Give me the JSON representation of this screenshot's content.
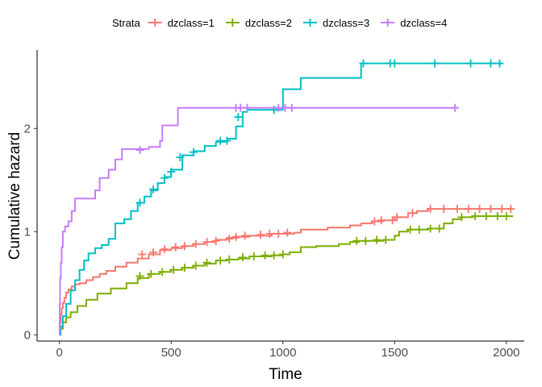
{
  "chart_data": {
    "type": "line",
    "step": true,
    "xlabel": "Time",
    "ylabel": "Cumulative hazard",
    "xlim": [
      -100,
      2080
    ],
    "ylim": [
      -0.06,
      2.76
    ],
    "xticks": [
      0,
      500,
      1000,
      1500,
      2000
    ],
    "yticks": [
      0,
      1,
      2
    ],
    "grid": false,
    "legend": {
      "position": "top",
      "title": "Strata"
    },
    "series": [
      {
        "name": "dzclass=1",
        "color": "#F8766D",
        "points": [
          [
            0,
            0
          ],
          [
            3,
            0.12
          ],
          [
            6,
            0.2
          ],
          [
            10,
            0.26
          ],
          [
            15,
            0.31
          ],
          [
            22,
            0.36
          ],
          [
            30,
            0.41
          ],
          [
            40,
            0.44
          ],
          [
            55,
            0.47
          ],
          [
            70,
            0.49
          ],
          [
            90,
            0.5
          ],
          [
            120,
            0.53
          ],
          [
            150,
            0.56
          ],
          [
            180,
            0.59
          ],
          [
            210,
            0.62
          ],
          [
            250,
            0.66
          ],
          [
            300,
            0.7
          ],
          [
            350,
            0.74
          ],
          [
            400,
            0.78
          ],
          [
            450,
            0.82
          ],
          [
            500,
            0.84
          ],
          [
            550,
            0.86
          ],
          [
            600,
            0.88
          ],
          [
            650,
            0.9
          ],
          [
            700,
            0.92
          ],
          [
            750,
            0.94
          ],
          [
            800,
            0.95
          ],
          [
            850,
            0.96
          ],
          [
            900,
            0.96
          ],
          [
            950,
            0.98
          ],
          [
            1000,
            0.98
          ],
          [
            1050,
            0.99
          ],
          [
            1080,
            1.02
          ],
          [
            1150,
            1.02
          ],
          [
            1200,
            1.04
          ],
          [
            1300,
            1.06
          ],
          [
            1350,
            1.08
          ],
          [
            1400,
            1.1
          ],
          [
            1450,
            1.11
          ],
          [
            1500,
            1.14
          ],
          [
            1560,
            1.18
          ],
          [
            1600,
            1.2
          ],
          [
            1650,
            1.22
          ],
          [
            1700,
            1.22
          ],
          [
            2030,
            1.22
          ]
        ],
        "censored": [
          [
            370,
            0.78
          ],
          [
            420,
            0.8
          ],
          [
            470,
            0.83
          ],
          [
            520,
            0.85
          ],
          [
            560,
            0.86
          ],
          [
            610,
            0.88
          ],
          [
            660,
            0.9
          ],
          [
            700,
            0.91
          ],
          [
            760,
            0.93
          ],
          [
            790,
            0.95
          ],
          [
            830,
            0.96
          ],
          [
            900,
            0.97
          ],
          [
            940,
            0.98
          ],
          [
            980,
            0.98
          ],
          [
            1020,
            0.99
          ],
          [
            1410,
            1.1
          ],
          [
            1440,
            1.11
          ],
          [
            1490,
            1.11
          ],
          [
            1510,
            1.14
          ],
          [
            1580,
            1.18
          ],
          [
            1660,
            1.22
          ],
          [
            1720,
            1.22
          ],
          [
            1780,
            1.22
          ],
          [
            1830,
            1.22
          ],
          [
            1880,
            1.22
          ],
          [
            1930,
            1.22
          ],
          [
            1980,
            1.22
          ],
          [
            2020,
            1.22
          ]
        ]
      },
      {
        "name": "dzclass=2",
        "color": "#7CAE00",
        "points": [
          [
            0,
            0
          ],
          [
            5,
            0.06
          ],
          [
            15,
            0.12
          ],
          [
            30,
            0.17
          ],
          [
            50,
            0.22
          ],
          [
            80,
            0.28
          ],
          [
            120,
            0.34
          ],
          [
            170,
            0.4
          ],
          [
            230,
            0.45
          ],
          [
            300,
            0.5
          ],
          [
            350,
            0.55
          ],
          [
            400,
            0.59
          ],
          [
            450,
            0.61
          ],
          [
            500,
            0.63
          ],
          [
            550,
            0.65
          ],
          [
            600,
            0.67
          ],
          [
            650,
            0.69
          ],
          [
            700,
            0.72
          ],
          [
            750,
            0.73
          ],
          [
            800,
            0.74
          ],
          [
            850,
            0.76
          ],
          [
            900,
            0.76
          ],
          [
            950,
            0.77
          ],
          [
            1000,
            0.78
          ],
          [
            1030,
            0.8
          ],
          [
            1080,
            0.85
          ],
          [
            1150,
            0.86
          ],
          [
            1250,
            0.88
          ],
          [
            1300,
            0.9
          ],
          [
            1340,
            0.91
          ],
          [
            1450,
            0.92
          ],
          [
            1500,
            0.96
          ],
          [
            1520,
            1.0
          ],
          [
            1560,
            1.02
          ],
          [
            1600,
            1.02
          ],
          [
            1650,
            1.03
          ],
          [
            1700,
            1.03
          ],
          [
            1720,
            1.08
          ],
          [
            1760,
            1.12
          ],
          [
            1800,
            1.14
          ],
          [
            1850,
            1.15
          ],
          [
            2030,
            1.15
          ]
        ],
        "censored": [
          [
            360,
            0.57
          ],
          [
            410,
            0.59
          ],
          [
            460,
            0.61
          ],
          [
            510,
            0.63
          ],
          [
            560,
            0.65
          ],
          [
            610,
            0.67
          ],
          [
            660,
            0.7
          ],
          [
            720,
            0.72
          ],
          [
            760,
            0.73
          ],
          [
            820,
            0.75
          ],
          [
            870,
            0.76
          ],
          [
            920,
            0.77
          ],
          [
            960,
            0.77
          ],
          [
            1000,
            0.78
          ],
          [
            1330,
            0.91
          ],
          [
            1370,
            0.91
          ],
          [
            1420,
            0.92
          ],
          [
            1460,
            0.92
          ],
          [
            1570,
            1.02
          ],
          [
            1610,
            1.02
          ],
          [
            1660,
            1.03
          ],
          [
            1700,
            1.03
          ],
          [
            1800,
            1.14
          ],
          [
            1860,
            1.15
          ],
          [
            1910,
            1.15
          ],
          [
            1960,
            1.15
          ],
          [
            2000,
            1.15
          ]
        ]
      },
      {
        "name": "dzclass=3",
        "color": "#00BFC4",
        "points": [
          [
            0,
            0
          ],
          [
            5,
            0.08
          ],
          [
            15,
            0.18
          ],
          [
            30,
            0.3
          ],
          [
            50,
            0.43
          ],
          [
            70,
            0.53
          ],
          [
            90,
            0.63
          ],
          [
            110,
            0.72
          ],
          [
            130,
            0.79
          ],
          [
            160,
            0.84
          ],
          [
            190,
            0.87
          ],
          [
            220,
            0.93
          ],
          [
            250,
            1.08
          ],
          [
            290,
            1.12
          ],
          [
            320,
            1.2
          ],
          [
            350,
            1.28
          ],
          [
            380,
            1.34
          ],
          [
            410,
            1.4
          ],
          [
            440,
            1.47
          ],
          [
            470,
            1.53
          ],
          [
            500,
            1.6
          ],
          [
            550,
            1.74
          ],
          [
            600,
            1.78
          ],
          [
            650,
            1.83
          ],
          [
            700,
            1.87
          ],
          [
            750,
            1.9
          ],
          [
            790,
            2.02
          ],
          [
            820,
            2.16
          ],
          [
            840,
            2.18
          ],
          [
            980,
            2.18
          ],
          [
            1000,
            2.38
          ],
          [
            1080,
            2.38
          ],
          [
            1080,
            2.49
          ],
          [
            1340,
            2.49
          ],
          [
            1350,
            2.63
          ],
          [
            1980,
            2.63
          ]
        ],
        "censored": [
          [
            360,
            1.28
          ],
          [
            420,
            1.41
          ],
          [
            470,
            1.52
          ],
          [
            500,
            1.58
          ],
          [
            540,
            1.72
          ],
          [
            600,
            1.77
          ],
          [
            720,
            1.88
          ],
          [
            750,
            1.88
          ],
          [
            800,
            2.11
          ],
          [
            960,
            2.18
          ],
          [
            1360,
            2.63
          ],
          [
            1480,
            2.63
          ],
          [
            1500,
            2.63
          ],
          [
            1680,
            2.63
          ],
          [
            1840,
            2.63
          ],
          [
            1930,
            2.63
          ],
          [
            1970,
            2.63
          ]
        ]
      },
      {
        "name": "dzclass=4",
        "color": "#C77CFF",
        "points": [
          [
            0,
            0
          ],
          [
            1,
            0.3
          ],
          [
            3,
            0.55
          ],
          [
            6,
            0.7
          ],
          [
            10,
            0.85
          ],
          [
            15,
            1.0
          ],
          [
            25,
            1.05
          ],
          [
            40,
            1.1
          ],
          [
            55,
            1.2
          ],
          [
            70,
            1.32
          ],
          [
            100,
            1.32
          ],
          [
            140,
            1.32
          ],
          [
            160,
            1.4
          ],
          [
            180,
            1.52
          ],
          [
            220,
            1.6
          ],
          [
            250,
            1.7
          ],
          [
            280,
            1.8
          ],
          [
            350,
            1.8
          ],
          [
            400,
            1.82
          ],
          [
            450,
            1.88
          ],
          [
            460,
            2.03
          ],
          [
            520,
            2.03
          ],
          [
            530,
            2.2
          ],
          [
            1000,
            2.2
          ],
          [
            1780,
            2.2
          ]
        ],
        "censored": [
          [
            360,
            1.79
          ],
          [
            790,
            2.2
          ],
          [
            810,
            2.2
          ],
          [
            840,
            2.2
          ],
          [
            980,
            2.2
          ],
          [
            1010,
            2.2
          ],
          [
            1040,
            2.2
          ],
          [
            1770,
            2.2
          ]
        ]
      }
    ]
  }
}
